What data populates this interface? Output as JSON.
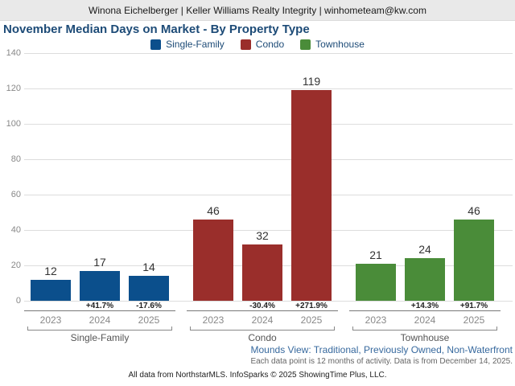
{
  "header": {
    "contact_line": "Winona Eichelberger | Keller Williams Realty Integrity | winhometeam@kw.com"
  },
  "title": "November Median Days on Market - By Property Type",
  "legend": [
    {
      "label": "Single-Family",
      "color": "#0b4f8c"
    },
    {
      "label": "Condo",
      "color": "#9a2e2b"
    },
    {
      "label": "Townhouse",
      "color": "#4a8c39"
    }
  ],
  "chart_data": {
    "type": "bar",
    "title": "November Median Days on Market - By Property Type",
    "xlabel": "",
    "ylabel": "",
    "ylim": [
      0,
      140
    ],
    "y_ticks": [
      0,
      20,
      40,
      60,
      80,
      100,
      120,
      140
    ],
    "grid": true,
    "legend_position": "top",
    "categories": [
      "2023",
      "2024",
      "2025"
    ],
    "series": [
      {
        "name": "Single-Family",
        "color": "#0b4f8c",
        "values": [
          12,
          17,
          14
        ],
        "pct_change": [
          null,
          "+41.7%",
          "-17.6%"
        ]
      },
      {
        "name": "Condo",
        "color": "#9a2e2b",
        "values": [
          46,
          32,
          119
        ],
        "pct_change": [
          null,
          "-30.4%",
          "+271.9%"
        ]
      },
      {
        "name": "Townhouse",
        "color": "#4a8c39",
        "values": [
          21,
          24,
          46
        ],
        "pct_change": [
          null,
          "+14.3%",
          "+91.7%"
        ]
      }
    ]
  },
  "footnotes": {
    "filter_line": "Mounds View: Traditional, Previously Owned, Non-Waterfront",
    "data_note": "Each data point is 12 months of activity. Data is from December 14, 2025.",
    "attribution": "All data from NorthstarMLS. InfoSparks © 2025 ShowingTime Plus, LLC."
  }
}
